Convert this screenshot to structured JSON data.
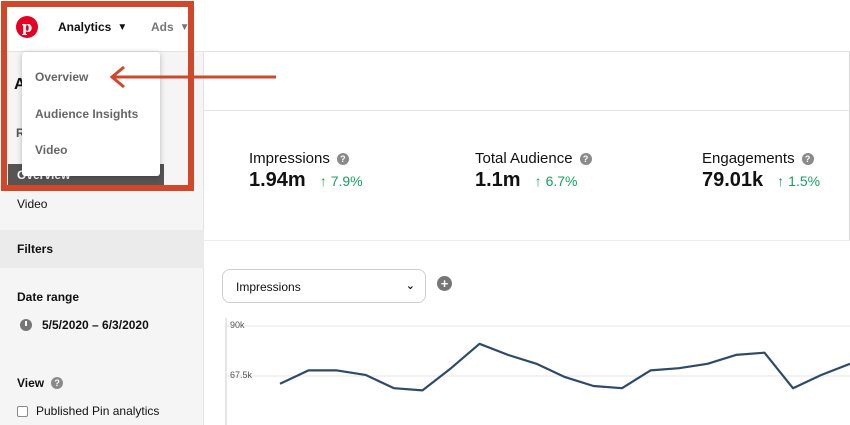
{
  "nav": {
    "logo_letter": "p",
    "analytics_label": "Analytics",
    "ads_label": "Ads"
  },
  "menu": {
    "items": [
      {
        "label": "Overview"
      },
      {
        "label": "Audience Insights"
      },
      {
        "label": "Video"
      }
    ]
  },
  "sidebar": {
    "heading_partial": "A",
    "section_partial": "R",
    "active_item": "Overview",
    "video_item": "Video",
    "filters_label": "Filters",
    "date_range_label": "Date range",
    "date_range_value": "5/5/2020 – 6/3/2020",
    "view_label": "View",
    "published_pin_label": "Published Pin analytics"
  },
  "metrics": [
    {
      "label": "Impressions",
      "value": "1.94m",
      "change": "7.9%"
    },
    {
      "label": "Total Audience",
      "value": "1.1m",
      "change": "6.7%"
    },
    {
      "label": "Engagements",
      "value": "79.01k",
      "change": "1.5%"
    }
  ],
  "chart_controls": {
    "metric_select": "Impressions"
  },
  "chart_data": {
    "type": "line",
    "y_tick_labels": [
      "90k",
      "67.5k"
    ],
    "ylim": [
      45000,
      90000
    ],
    "series": [
      {
        "values": [
          64000,
          70000,
          70000,
          68000,
          62000,
          61000,
          71000,
          82000,
          77000,
          73000,
          67000,
          63000,
          62000,
          70000,
          71000,
          73000,
          77000,
          78000,
          62000,
          68000,
          73000
        ]
      }
    ],
    "grid": true,
    "line_color": "#2e4a6b"
  },
  "colors": {
    "brand": "#e60023",
    "highlight": "#d0472a",
    "positive": "#1a9e63"
  }
}
